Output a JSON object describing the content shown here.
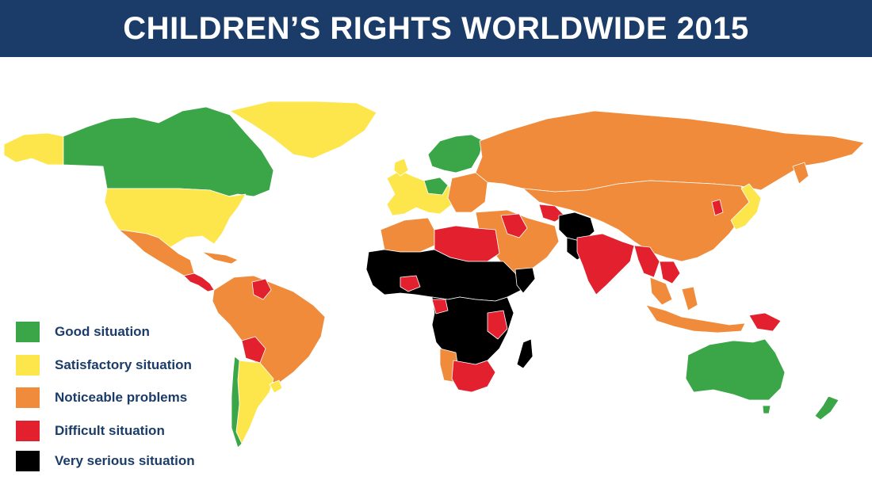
{
  "title": "CHILDREN’S RIGHTS WORLDWIDE 2015",
  "colors": {
    "header_bg": "#1b3c68",
    "good": "#3aa647",
    "satisfactory": "#fde64b",
    "noticeable": "#ef8b3a",
    "difficult": "#e2202e",
    "very_serious": "#000000"
  },
  "legend": [
    {
      "label": "Good situation",
      "color": "#3aa647"
    },
    {
      "label": "Satisfactory situation",
      "color": "#fde64b"
    },
    {
      "label": "Noticeable problems",
      "color": "#ef8b3a"
    },
    {
      "label": "Difficult situation",
      "color": "#e2202e"
    },
    {
      "label": "Very serious situation",
      "color": "#000000"
    }
  ]
}
